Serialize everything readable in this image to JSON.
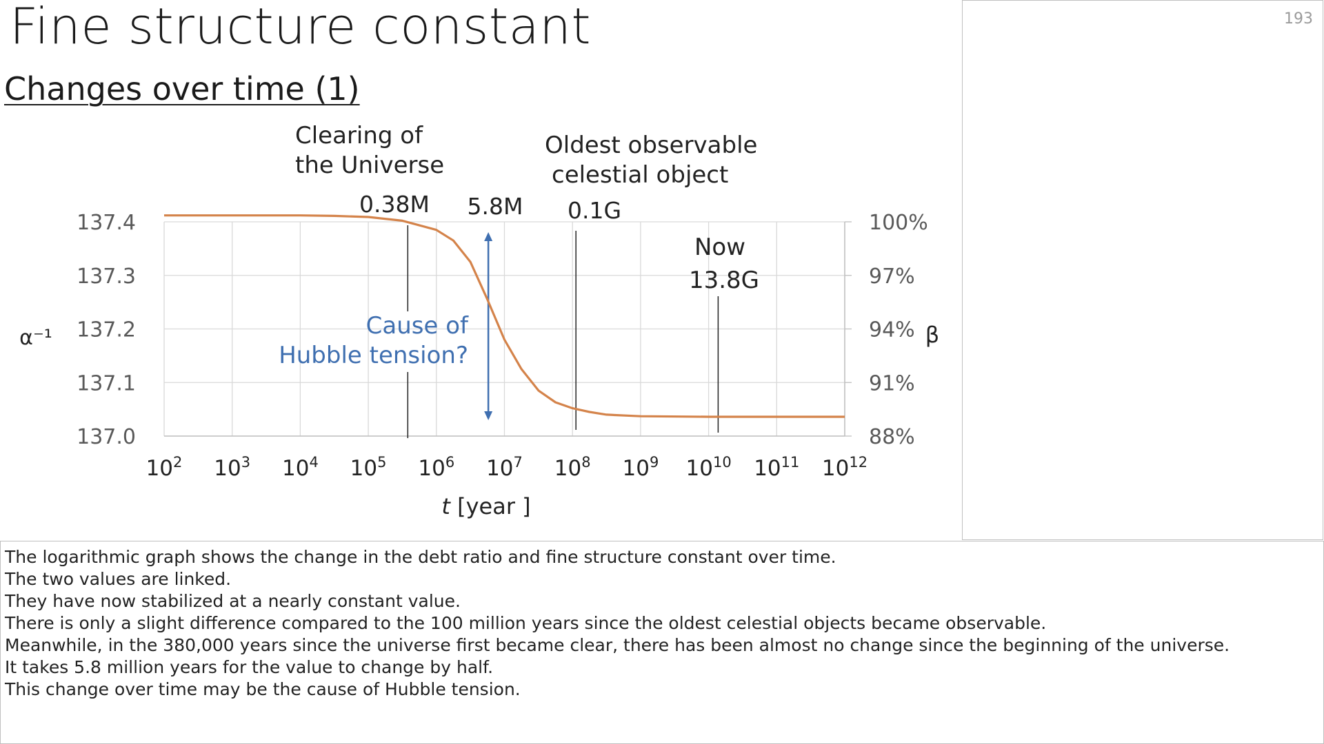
{
  "slide": {
    "title": "Fine structure constant",
    "subtitle": "Changes over time (1)",
    "page_number": "193"
  },
  "notes": [
    "The logarithmic graph shows the change in the debt ratio and fine structure constant over time.",
    "The two values are linked.",
    "They have now stabilized at a nearly constant value.",
    "There is only a slight difference compared to the 100 million years since the oldest celestial objects became observable.",
    "Meanwhile, in the 380,000 years since the universe first became clear, there has been almost no change since the beginning of the universe.",
    "It takes 5.8 million years for the value to change by half.",
    "This change over time may be the cause of Hubble tension."
  ],
  "chart_data": {
    "type": "line",
    "x_scale": "log",
    "xlim": [
      100,
      1000000000000
    ],
    "x_ticks": [
      {
        "base": "10",
        "exp": "2"
      },
      {
        "base": "10",
        "exp": "3"
      },
      {
        "base": "10",
        "exp": "4"
      },
      {
        "base": "10",
        "exp": "5"
      },
      {
        "base": "10",
        "exp": "6"
      },
      {
        "base": "10",
        "exp": "7"
      },
      {
        "base": "10",
        "exp": "8"
      },
      {
        "base": "10",
        "exp": "9"
      },
      {
        "base": "10",
        "exp": "10"
      },
      {
        "base": "10",
        "exp": "11"
      },
      {
        "base": "10",
        "exp": "12"
      }
    ],
    "xlabel": {
      "var": "t",
      "unit": "[year ]"
    },
    "ylabel_left": "α⁻¹",
    "ylim_left": [
      137.0,
      137.4
    ],
    "y_ticks_left": [
      "137.4",
      "137.3",
      "137.2",
      "137.1",
      "137.0"
    ],
    "ylabel_right": "β",
    "y_ticks_right": [
      "100%",
      "97%",
      "94%",
      "91%",
      "88%"
    ],
    "grid": true,
    "line_color": "#d4834a",
    "series": [
      {
        "x": [
          100,
          1000,
          10000,
          31623,
          100000,
          316228,
          1000000,
          1778279,
          3162278,
          5623413,
          10000000,
          17782794,
          31622777,
          56234133,
          100000000,
          177827941,
          316227766,
          1000000000,
          10000000000,
          100000000000,
          1000000000000
        ],
        "values": [
          137.412,
          137.412,
          137.412,
          137.411,
          137.409,
          137.402,
          137.385,
          137.365,
          137.325,
          137.255,
          137.18,
          137.125,
          137.085,
          137.063,
          137.052,
          137.045,
          137.04,
          137.037,
          137.036,
          137.036,
          137.036
        ]
      }
    ],
    "annotations": {
      "clearing": {
        "x": 380000,
        "line1": "Clearing of",
        "line2": "the Universe",
        "value": "0.38M"
      },
      "half_change": {
        "x": 5800000,
        "value": "5.8M",
        "line1": "Cause of",
        "line2": "Hubble tension?",
        "color": "#3f6fb0"
      },
      "oldest_object": {
        "x": 100000000,
        "line1": "Oldest observable",
        "line2": "celestial object",
        "value": "0.1G"
      },
      "now": {
        "x": 13800000000,
        "line1": "Now",
        "value": "13.8G"
      }
    }
  }
}
